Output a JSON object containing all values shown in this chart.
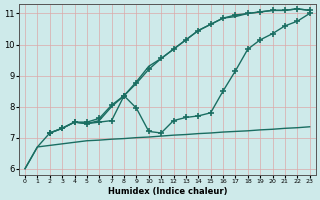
{
  "xlabel": "Humidex (Indice chaleur)",
  "xlim": [
    -0.5,
    23.5
  ],
  "ylim": [
    5.8,
    11.3
  ],
  "xticks": [
    0,
    1,
    2,
    3,
    4,
    5,
    6,
    7,
    8,
    9,
    10,
    11,
    12,
    13,
    14,
    15,
    16,
    17,
    18,
    19,
    20,
    21,
    22,
    23
  ],
  "yticks": [
    6,
    7,
    8,
    9,
    10,
    11
  ],
  "background_color": "#ceeaea",
  "grid_color": "#dba8a8",
  "line_color": "#1a6e62",
  "line_width": 1.0,
  "marker": "+",
  "markersize": 4,
  "markeredgewidth": 1.2,
  "line1_x": [
    0,
    1,
    2,
    3,
    4,
    5,
    6,
    7,
    8,
    9,
    10,
    11,
    12,
    13,
    14,
    15,
    16,
    17,
    18,
    19,
    20,
    21,
    22,
    23
  ],
  "line1_y": [
    6.0,
    6.7,
    7.15,
    7.3,
    7.5,
    7.45,
    7.55,
    8.0,
    8.35,
    8.8,
    9.3,
    9.55,
    9.85,
    10.15,
    10.45,
    10.65,
    10.85,
    10.9,
    11.0,
    11.05,
    11.1,
    11.1,
    11.15,
    11.1
  ],
  "line2_x": [
    2,
    3,
    4,
    5,
    6,
    7,
    8,
    9,
    10,
    11,
    12,
    13,
    14,
    15,
    16,
    17,
    18,
    19,
    20,
    21,
    22,
    23
  ],
  "line2_y": [
    7.15,
    7.3,
    7.5,
    7.5,
    7.62,
    8.05,
    8.35,
    8.75,
    9.2,
    9.55,
    9.85,
    10.15,
    10.45,
    10.65,
    10.85,
    10.95,
    11.0,
    11.05,
    11.1,
    11.1,
    11.15,
    11.1
  ],
  "line3_x": [
    0,
    1,
    2,
    3,
    4,
    5,
    6,
    7,
    8,
    9,
    10,
    11,
    12,
    13,
    14,
    15,
    16,
    17,
    18,
    19,
    20,
    21,
    22,
    23
  ],
  "line3_y": [
    6.0,
    6.7,
    6.75,
    6.8,
    6.85,
    6.9,
    6.92,
    6.95,
    6.97,
    7.0,
    7.02,
    7.05,
    7.08,
    7.1,
    7.13,
    7.15,
    7.18,
    7.2,
    7.22,
    7.25,
    7.27,
    7.3,
    7.32,
    7.35
  ],
  "line4_x": [
    2,
    3,
    4,
    5,
    6,
    7,
    8,
    9,
    10,
    11,
    12,
    13,
    14,
    15,
    16,
    17,
    18,
    19,
    20,
    21,
    22,
    23
  ],
  "line4_y": [
    7.15,
    7.3,
    7.5,
    7.45,
    7.5,
    7.55,
    8.35,
    7.95,
    7.2,
    7.15,
    7.55,
    7.65,
    7.7,
    7.8,
    8.5,
    9.15,
    9.85,
    10.15,
    10.35,
    10.6,
    10.75,
    11.0
  ]
}
